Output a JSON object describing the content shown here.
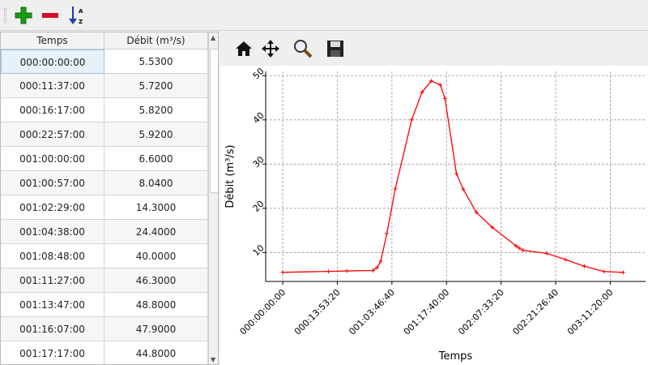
{
  "toolbar": {
    "icons": [
      "add-row-icon",
      "remove-row-icon",
      "sort-az-icon"
    ],
    "sort_letters": "A Z"
  },
  "table": {
    "columns": [
      "Temps",
      "Débit (m³/s)"
    ],
    "rows": [
      [
        "000:00:00:00",
        "5.5300"
      ],
      [
        "000:11:37:00",
        "5.7200"
      ],
      [
        "000:16:17:00",
        "5.8200"
      ],
      [
        "000:22:57:00",
        "5.9200"
      ],
      [
        "001:00:00:00",
        "6.6000"
      ],
      [
        "001:00:57:00",
        "8.0400"
      ],
      [
        "001:02:29:00",
        "14.3000"
      ],
      [
        "001:04:38:00",
        "24.4000"
      ],
      [
        "001:08:48:00",
        "40.0000"
      ],
      [
        "001:11:27:00",
        "46.3000"
      ],
      [
        "001:13:47:00",
        "48.8000"
      ],
      [
        "001:16:07:00",
        "47.9000"
      ],
      [
        "001:17:17:00",
        "44.8000"
      ]
    ]
  },
  "chart_toolbar": {
    "icons": [
      "home-icon",
      "pan-icon",
      "zoom-icon",
      "save-icon"
    ]
  },
  "chart_data": {
    "type": "line",
    "xlabel": "Temps",
    "ylabel": "Débit (m³/s)",
    "color": "#ff0000",
    "grid": true,
    "xlim": [
      "-000:04:20:00",
      "003:20:18:20"
    ],
    "ylim": [
      3.45,
      50.97
    ],
    "xticks": [
      "000:00:00:00",
      "000:13:53:20",
      "001:03:46:40",
      "001:17:40:00",
      "002:07:33:20",
      "002:21:26:40",
      "003:11:20:00"
    ],
    "yticks": [
      10,
      20,
      30,
      40,
      50
    ],
    "x": [
      "000:00:00:00",
      "000:11:37:00",
      "000:16:17:00",
      "000:22:57:00",
      "001:00:00:00",
      "001:00:57:00",
      "001:02:29:00",
      "001:04:38:00",
      "001:08:48:00",
      "001:11:27:00",
      "001:13:47:00",
      "001:16:07:00",
      "001:17:17:00",
      "001:20:12:00",
      "001:21:56:00",
      "002:01:14:00",
      "002:05:17:00",
      "002:11:20:00",
      "002:12:10:00",
      "002:13:12:00",
      "002:19:11:00",
      "002:23:55:00",
      "003:04:44:00",
      "003:09:45:00",
      "003:14:38:00"
    ],
    "y": [
      5.53,
      5.72,
      5.82,
      5.92,
      6.6,
      8.04,
      14.3,
      24.4,
      40.0,
      46.3,
      48.8,
      47.9,
      44.8,
      27.8,
      24.3,
      19.1,
      15.7,
      11.5,
      11.0,
      10.5,
      9.8,
      8.4,
      6.9,
      5.7,
      5.5
    ]
  }
}
